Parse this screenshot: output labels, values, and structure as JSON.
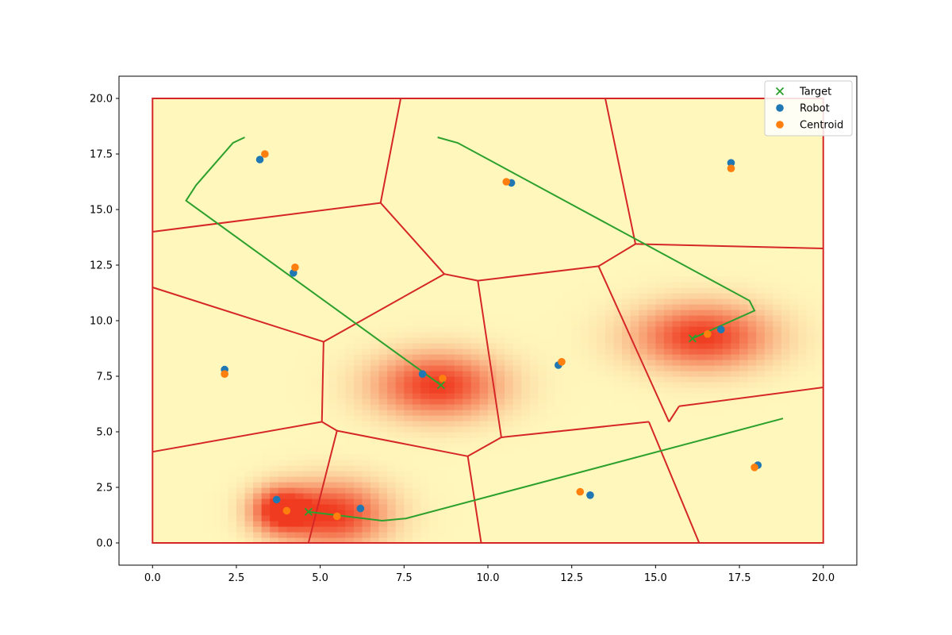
{
  "chart_data": {
    "type": "scatter",
    "xlim": [
      -1,
      21
    ],
    "ylim": [
      -1,
      21
    ],
    "grid": false,
    "legend_placement": "top-right",
    "xticks": [
      {
        "v": 0,
        "label": "0.0"
      },
      {
        "v": 2.5,
        "label": "2.5"
      },
      {
        "v": 5,
        "label": "5.0"
      },
      {
        "v": 7.5,
        "label": "7.5"
      },
      {
        "v": 10,
        "label": "10.0"
      },
      {
        "v": 12.5,
        "label": "12.5"
      },
      {
        "v": 15,
        "label": "15.0"
      },
      {
        "v": 17.5,
        "label": "17.5"
      },
      {
        "v": 20,
        "label": "20.0"
      }
    ],
    "yticks": [
      {
        "v": 0,
        "label": "0.0"
      },
      {
        "v": 2.5,
        "label": "2.5"
      },
      {
        "v": 5,
        "label": "5.0"
      },
      {
        "v": 7.5,
        "label": "7.5"
      },
      {
        "v": 10,
        "label": "10.0"
      },
      {
        "v": 12.5,
        "label": "12.5"
      },
      {
        "v": 15,
        "label": "15.0"
      },
      {
        "v": 17.5,
        "label": "17.5"
      },
      {
        "v": 20,
        "label": "20.0"
      }
    ],
    "density": {
      "domain": [
        0,
        20
      ],
      "background_color": "#fff7bc",
      "hot_color": "#f03b20",
      "peaks": [
        {
          "x": 8.5,
          "y": 7.1,
          "sx": 1.3,
          "sy": 1.0
        },
        {
          "x": 16.4,
          "y": 9.3,
          "sx": 1.4,
          "sy": 1.0
        },
        {
          "x": 5.4,
          "y": 1.3,
          "sx": 1.1,
          "sy": 1.0
        },
        {
          "x": 3.8,
          "y": 1.5,
          "sx": 0.6,
          "sy": 0.7
        }
      ]
    },
    "voronoi": {
      "color": "#d62728",
      "boundary": [
        [
          0,
          0
        ],
        [
          20,
          0
        ],
        [
          20,
          20
        ],
        [
          0,
          20
        ]
      ],
      "edges": [
        [
          [
            0,
            14.0
          ],
          [
            6.8,
            15.3
          ]
        ],
        [
          [
            6.8,
            15.3
          ],
          [
            7.4,
            20
          ]
        ],
        [
          [
            6.8,
            15.3
          ],
          [
            8.7,
            12.1
          ]
        ],
        [
          [
            0,
            11.5
          ],
          [
            5.1,
            9.05
          ]
        ],
        [
          [
            5.1,
            9.05
          ],
          [
            8.7,
            12.1
          ]
        ],
        [
          [
            8.7,
            12.1
          ],
          [
            9.7,
            11.8
          ]
        ],
        [
          [
            9.7,
            11.8
          ],
          [
            13.3,
            12.45
          ]
        ],
        [
          [
            13.3,
            12.45
          ],
          [
            14.4,
            13.45
          ]
        ],
        [
          [
            14.4,
            13.45
          ],
          [
            13.5,
            20
          ]
        ],
        [
          [
            14.4,
            13.45
          ],
          [
            20,
            13.25
          ]
        ],
        [
          [
            13.3,
            12.45
          ],
          [
            15.4,
            5.45
          ]
        ],
        [
          [
            15.4,
            5.45
          ],
          [
            15.7,
            6.15
          ]
        ],
        [
          [
            15.7,
            6.15
          ],
          [
            20,
            7.0
          ]
        ],
        [
          [
            9.7,
            11.8
          ],
          [
            10.4,
            4.75
          ]
        ],
        [
          [
            10.4,
            4.75
          ],
          [
            14.8,
            5.45
          ]
        ],
        [
          [
            14.8,
            5.45
          ],
          [
            16.3,
            0
          ]
        ],
        [
          [
            10.4,
            4.75
          ],
          [
            9.4,
            3.9
          ]
        ],
        [
          [
            9.4,
            3.9
          ],
          [
            9.8,
            0
          ]
        ],
        [
          [
            9.4,
            3.9
          ],
          [
            5.5,
            5.05
          ]
        ],
        [
          [
            5.5,
            5.05
          ],
          [
            4.65,
            0
          ]
        ],
        [
          [
            5.5,
            5.05
          ],
          [
            5.05,
            5.45
          ]
        ],
        [
          [
            5.05,
            5.45
          ],
          [
            5.1,
            9.05
          ]
        ],
        [
          [
            5.05,
            5.45
          ],
          [
            0,
            4.1
          ]
        ]
      ]
    },
    "trajectories": {
      "color": "#2ca02c",
      "paths": [
        [
          [
            2.75,
            18.25
          ],
          [
            2.4,
            18.0
          ],
          [
            1.3,
            16.1
          ],
          [
            1.0,
            15.4
          ],
          [
            8.6,
            7.1
          ]
        ],
        [
          [
            8.5,
            18.25
          ],
          [
            9.1,
            18.0
          ],
          [
            17.8,
            10.9
          ],
          [
            17.95,
            10.45
          ],
          [
            16.1,
            9.2
          ]
        ],
        [
          [
            4.65,
            1.4
          ],
          [
            6.85,
            1.0
          ],
          [
            7.55,
            1.1
          ],
          [
            18.8,
            5.6
          ]
        ]
      ]
    },
    "series": [
      {
        "name": "Target",
        "marker": "x",
        "color": "#2ca02c",
        "points": [
          [
            8.6,
            7.1
          ],
          [
            16.1,
            9.2
          ],
          [
            4.65,
            1.4
          ]
        ]
      },
      {
        "name": "Robot",
        "marker": "o",
        "color": "#1f77b4",
        "points": [
          [
            3.2,
            17.25
          ],
          [
            10.7,
            16.2
          ],
          [
            17.25,
            17.1
          ],
          [
            4.2,
            12.15
          ],
          [
            2.15,
            7.8
          ],
          [
            8.05,
            7.6
          ],
          [
            12.1,
            8.0
          ],
          [
            16.95,
            9.6
          ],
          [
            3.7,
            1.95
          ],
          [
            6.2,
            1.55
          ],
          [
            13.05,
            2.15
          ],
          [
            18.05,
            3.5
          ]
        ]
      },
      {
        "name": "Centroid",
        "marker": "o",
        "color": "#ff7f0e",
        "points": [
          [
            3.35,
            17.5
          ],
          [
            10.55,
            16.25
          ],
          [
            17.25,
            16.85
          ],
          [
            4.25,
            12.4
          ],
          [
            2.15,
            7.6
          ],
          [
            8.65,
            7.4
          ],
          [
            12.2,
            8.15
          ],
          [
            16.55,
            9.4
          ],
          [
            4.0,
            1.45
          ],
          [
            5.5,
            1.2
          ],
          [
            12.75,
            2.3
          ],
          [
            17.95,
            3.4
          ]
        ]
      }
    ]
  }
}
